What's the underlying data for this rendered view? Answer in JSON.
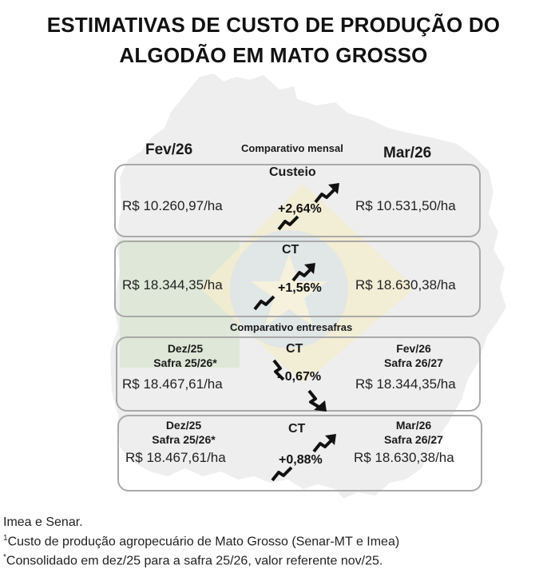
{
  "title": {
    "line1": "ESTIMATIVAS DE CUSTO DE PRODUÇÃO DO",
    "line2": "ALGODÃO EM MATO GROSSO"
  },
  "colors": {
    "border": "#a9a9a9",
    "map_bg": "#eeeeee",
    "flag_green": "#d9e6cf",
    "flag_yellow": "#f2ecd2",
    "flag_blue": "#dce3ea",
    "text": "#1a1a1a"
  },
  "monthly": {
    "caption": "Comparativo mensal",
    "left_period": "Fev/26",
    "right_period": "Mar/26",
    "panels": [
      {
        "title": "Custeio",
        "left_value": "R$ 10.260,97/ha",
        "right_value": "R$ 10.531,50/ha",
        "change": "+2,64%",
        "direction": "up",
        "arrow_icon": "trend-up-arrow-icon"
      },
      {
        "title": "CT",
        "left_value": "R$ 18.344,35/ha",
        "right_value": "R$ 18.630,38/ha",
        "change": "+1,56%",
        "direction": "up",
        "arrow_icon": "trend-up-arrow-icon"
      }
    ]
  },
  "between_seasons": {
    "caption": "Comparativo entresafras",
    "panels": [
      {
        "title": "CT",
        "left_period_1": "Dez/25",
        "left_period_2": "Safra 25/26*",
        "right_period_1": "Fev/26",
        "right_period_2": "Safra 26/27",
        "left_value": "R$ 18.467,61/ha",
        "right_value": "R$ 18.344,35/ha",
        "change": "- 0,67%",
        "direction": "down",
        "arrow_icon": "trend-down-arrow-icon"
      },
      {
        "title": "CT",
        "left_period_1": "Dez/25",
        "left_period_2": "Safra 25/26*",
        "right_period_1": "Mar/26",
        "right_period_2": "Safra 26/27",
        "left_value": "R$ 18.467,61/ha",
        "right_value": "R$ 18.630,38/ha",
        "change": "+0,88%",
        "direction": "up",
        "arrow_icon": "trend-up-arrow-icon"
      }
    ]
  },
  "footer": {
    "source": "Imea e Senar.",
    "note1_marker": "1",
    "note1": "Custo de produção agropecuário de Mato Grosso (Senar-MT e Imea)",
    "note2_marker": "*",
    "note2": "Consolidado em dez/25 para a safra 25/26, valor referente nov/25."
  }
}
